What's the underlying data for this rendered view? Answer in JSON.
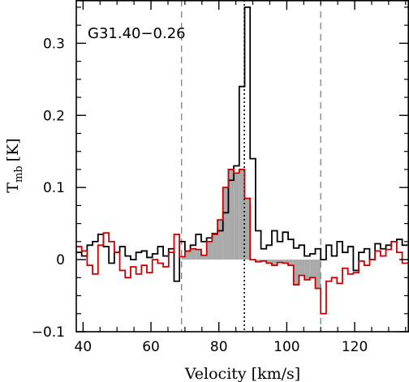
{
  "chart_data": {
    "type": "line",
    "title": "G31.40−0.26",
    "xlabel": "Velocity [km/s]",
    "ylabel_main": "T",
    "ylabel_sub": "mb",
    "ylabel_unit": "[K]",
    "xlim": [
      38,
      136
    ],
    "ylim": [
      -0.1,
      0.36
    ],
    "x_ticks": [
      40,
      60,
      80,
      100,
      120
    ],
    "x_tick_labels": [
      "40",
      "60",
      "80",
      "100",
      "120"
    ],
    "y_ticks": [
      -0.1,
      0,
      0.1,
      0.2,
      0.3
    ],
    "y_tick_labels": [
      "−0.1",
      "0",
      "0.1",
      "0.2",
      "0.3"
    ],
    "vlines": [
      {
        "x": 69,
        "style": "dashed",
        "color": "#888888"
      },
      {
        "x": 87.5,
        "style": "dotted",
        "color": "#000000"
      },
      {
        "x": 110,
        "style": "dashed",
        "color": "#888888"
      }
    ],
    "colors": {
      "series1": "#000000",
      "series2": "#cc0000",
      "fill": "#aaaaaa"
    },
    "series": [
      {
        "step": 1.6,
        "x": [
          38,
          39.6,
          41.2,
          42.8,
          44.4,
          46,
          47.6,
          49.2,
          50.8,
          52.4,
          54,
          55.6,
          57.2,
          58.8,
          60.4,
          62,
          63.6,
          65.2,
          66.8,
          68.4,
          70,
          71.6,
          73.2,
          74.8,
          76.4,
          78,
          79.6,
          81.2,
          82.8,
          84.4,
          86,
          87.6,
          89.2,
          90.8,
          92.4,
          94,
          95.6,
          97.2,
          98.8,
          100.4,
          102,
          103.6,
          105.2,
          106.8,
          108.4,
          110,
          111.6,
          113.2,
          114.8,
          116.4,
          118,
          119.6,
          121.2,
          122.8,
          124.4,
          126,
          127.6,
          129.2,
          130.8,
          132.4,
          134
        ],
        "y": [
          0.01,
          0.005,
          0.02,
          0.025,
          0.035,
          0.018,
          -0.005,
          0.01,
          0.018,
          0.005,
          0.0,
          0.01,
          0.012,
          0.003,
          0.008,
          0.018,
          0.005,
          0.015,
          -0.03,
          0.025,
          0.012,
          0.02,
          0.035,
          0.025,
          0.03,
          0.036,
          0.04,
          0.065,
          0.11,
          0.13,
          0.24,
          0.35,
          0.14,
          0.04,
          0.015,
          0.02,
          0.04,
          0.025,
          0.038,
          0.028,
          0.016,
          0.02,
          0.005,
          0.008,
          0.015,
          0.0,
          0.02,
          0.005,
          0.025,
          0.01,
          0.018,
          -0.015,
          0.01,
          0.015,
          0.0,
          0.022,
          0.015,
          0.02,
          0.025,
          0.028,
          0.02
        ]
      },
      {
        "step": 1.6,
        "x": [
          38,
          39.6,
          41.2,
          42.8,
          44.4,
          46,
          47.6,
          49.2,
          50.8,
          52.4,
          54,
          55.6,
          57.2,
          58.8,
          60.4,
          62,
          63.6,
          65.2,
          66.8,
          68.4,
          70,
          71.6,
          73.2,
          74.8,
          76.4,
          78,
          79.6,
          81.2,
          82.8,
          84.4,
          86,
          87.6,
          89.2,
          90.8,
          92.4,
          94,
          95.6,
          97.2,
          98.8,
          100.4,
          102,
          103.6,
          105.2,
          106.8,
          108.4,
          110,
          111.6,
          113.2,
          114.8,
          116.4,
          118,
          119.6,
          121.2,
          122.8,
          124.4,
          126,
          127.6,
          129.2,
          130.8,
          132.4,
          134
        ],
        "y": [
          0.018,
          0.012,
          -0.008,
          -0.02,
          0.02,
          0.037,
          0.025,
          0.01,
          -0.015,
          -0.025,
          -0.01,
          -0.02,
          -0.008,
          -0.018,
          0.0,
          -0.005,
          -0.01,
          0.01,
          0.035,
          0.004,
          0.012,
          0.015,
          0.014,
          0.006,
          0.025,
          0.035,
          0.055,
          0.1,
          0.125,
          0.12,
          0.125,
          0.085,
          0.0,
          -0.003,
          -0.002,
          -0.005,
          -0.008,
          -0.004,
          -0.005,
          -0.008,
          -0.035,
          -0.022,
          -0.028,
          -0.025,
          -0.04,
          -0.075,
          -0.03,
          -0.025,
          -0.033,
          -0.012,
          -0.02,
          -0.018,
          -0.002,
          -0.008,
          0.0,
          0.012,
          0.005,
          0.014,
          0.025,
          0.01,
          -0.005
        ]
      }
    ]
  }
}
